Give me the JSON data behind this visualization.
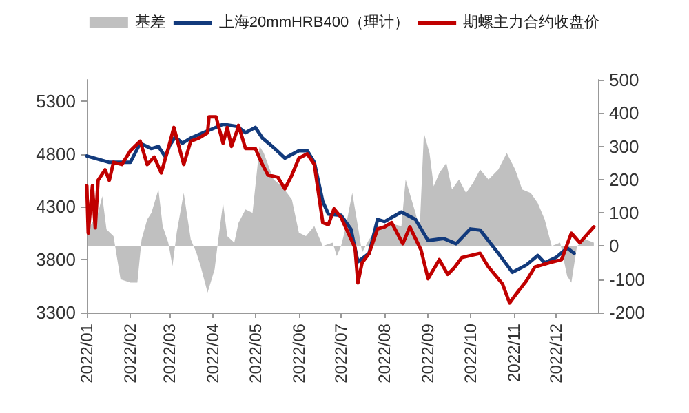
{
  "chart_data": {
    "type": "line",
    "legend": "top",
    "xlim": [
      "2022-01-01",
      "2022-12-31"
    ],
    "xticks": [
      {
        "value": "2022-01-01",
        "label": "2022/01"
      },
      {
        "value": "2022-02-01",
        "label": "2022/02"
      },
      {
        "value": "2022-03-01",
        "label": "2022/03"
      },
      {
        "value": "2022-04-01",
        "label": "2022/04"
      },
      {
        "value": "2022-05-01",
        "label": "2022/05"
      },
      {
        "value": "2022-06-01",
        "label": "2022/06"
      },
      {
        "value": "2022-07-01",
        "label": "2022/07"
      },
      {
        "value": "2022-08-01",
        "label": "2022/08"
      },
      {
        "value": "2022-09-01",
        "label": "2022/09"
      },
      {
        "value": "2022-10-01",
        "label": "2022/10"
      },
      {
        "value": "2022-11-01",
        "label": "2022/11"
      },
      {
        "value": "2022-12-01",
        "label": "2022/12"
      }
    ],
    "ylim": [
      3300,
      5500
    ],
    "yticks": [
      3300,
      3800,
      4300,
      4800,
      5300
    ],
    "y2lim": [
      -200,
      500
    ],
    "y2ticks": [
      -200,
      -100,
      0,
      100,
      200,
      300,
      400,
      500
    ],
    "series": [
      {
        "name": "基差",
        "type": "area",
        "axis": "y2",
        "color": "#c0c0c0",
        "x": [
          "2022-01-02",
          "2022-01-09",
          "2022-01-12",
          "2022-01-15",
          "2022-01-20",
          "2022-01-25",
          "2022-02-01",
          "2022-02-06",
          "2022-02-09",
          "2022-02-13",
          "2022-02-16",
          "2022-02-21",
          "2022-02-24",
          "2022-02-28",
          "2022-03-03",
          "2022-03-06",
          "2022-03-11",
          "2022-03-16",
          "2022-03-20",
          "2022-03-23",
          "2022-03-28",
          "2022-04-02",
          "2022-04-04",
          "2022-04-08",
          "2022-04-11",
          "2022-04-16",
          "2022-04-19",
          "2022-04-24",
          "2022-04-29",
          "2022-05-04",
          "2022-05-07",
          "2022-05-14",
          "2022-05-20",
          "2022-05-27",
          "2022-06-01",
          "2022-06-06",
          "2022-06-12",
          "2022-06-18",
          "2022-06-25",
          "2022-06-28",
          "2022-07-01",
          "2022-07-04",
          "2022-07-09",
          "2022-07-13",
          "2022-07-16",
          "2022-07-21",
          "2022-07-27",
          "2022-08-03",
          "2022-08-13",
          "2022-08-16",
          "2022-08-23",
          "2022-08-26",
          "2022-08-29",
          "2022-09-02",
          "2022-09-05",
          "2022-09-09",
          "2022-09-14",
          "2022-09-18",
          "2022-09-23",
          "2022-09-28",
          "2022-10-03",
          "2022-10-08",
          "2022-10-14",
          "2022-10-21",
          "2022-10-27",
          "2022-11-02",
          "2022-11-07",
          "2022-11-13",
          "2022-11-18",
          "2022-11-23",
          "2022-11-28",
          "2022-12-04",
          "2022-12-09",
          "2022-12-12",
          "2022-12-16",
          "2022-12-22",
          "2022-12-28"
        ],
        "values": [
          50,
          100,
          150,
          50,
          30,
          -100,
          -110,
          -110,
          20,
          80,
          100,
          170,
          60,
          10,
          -60,
          40,
          160,
          20,
          -20,
          -60,
          -140,
          -70,
          0,
          130,
          30,
          10,
          70,
          110,
          100,
          300,
          280,
          200,
          180,
          140,
          40,
          30,
          60,
          0,
          10,
          -30,
          0,
          50,
          160,
          60,
          -20,
          20,
          50,
          70,
          60,
          200,
          100,
          50,
          340,
          280,
          180,
          220,
          250,
          170,
          200,
          160,
          190,
          230,
          200,
          230,
          280,
          230,
          170,
          160,
          130,
          80,
          0,
          10,
          -90,
          -110,
          0,
          20,
          10
        ]
      },
      {
        "name": "上海20mmHRB400（理计）",
        "color": "#123a7c",
        "x": [
          "2022-01-01",
          "2022-01-17",
          "2022-02-01",
          "2022-02-08",
          "2022-02-16",
          "2022-02-21",
          "2022-02-26",
          "2022-03-01",
          "2022-03-05",
          "2022-03-10",
          "2022-03-16",
          "2022-03-25",
          "2022-04-01",
          "2022-04-08",
          "2022-04-18",
          "2022-04-24",
          "2022-05-01",
          "2022-05-06",
          "2022-05-14",
          "2022-05-22",
          "2022-06-01",
          "2022-06-07",
          "2022-06-12",
          "2022-06-18",
          "2022-06-22",
          "2022-07-01",
          "2022-07-08",
          "2022-07-13",
          "2022-07-21",
          "2022-07-27",
          "2022-08-01",
          "2022-08-13",
          "2022-08-23",
          "2022-09-01",
          "2022-09-12",
          "2022-09-21",
          "2022-10-01",
          "2022-10-08",
          "2022-10-21",
          "2022-10-31",
          "2022-11-10",
          "2022-11-18",
          "2022-11-23",
          "2022-12-01",
          "2022-12-09",
          "2022-12-14"
        ],
        "values": [
          4780,
          4720,
          4720,
          4900,
          4850,
          4870,
          4770,
          4880,
          4960,
          4900,
          4950,
          5000,
          5040,
          5080,
          5060,
          5000,
          5050,
          4950,
          4860,
          4760,
          4830,
          4830,
          4720,
          4350,
          4230,
          4220,
          4090,
          3780,
          3860,
          4180,
          4160,
          4250,
          4180,
          3980,
          4000,
          3950,
          4090,
          4080,
          3860,
          3680,
          3750,
          3840,
          3770,
          3820,
          3910,
          3860
        ]
      },
      {
        "name": "期螺主力合约收盘价",
        "color": "#c00000",
        "x": [
          "2022-01-01",
          "2022-01-02",
          "2022-01-05",
          "2022-01-07",
          "2022-01-09",
          "2022-01-14",
          "2022-01-17",
          "2022-01-20",
          "2022-01-26",
          "2022-02-01",
          "2022-02-08",
          "2022-02-13",
          "2022-02-18",
          "2022-02-23",
          "2022-03-01",
          "2022-03-04",
          "2022-03-08",
          "2022-03-11",
          "2022-03-16",
          "2022-03-22",
          "2022-03-28",
          "2022-03-29",
          "2022-04-03",
          "2022-04-08",
          "2022-04-11",
          "2022-04-14",
          "2022-04-18",
          "2022-04-19",
          "2022-04-24",
          "2022-05-01",
          "2022-05-06",
          "2022-05-10",
          "2022-05-17",
          "2022-05-22",
          "2022-05-27",
          "2022-06-01",
          "2022-06-07",
          "2022-06-12",
          "2022-06-18",
          "2022-06-22",
          "2022-06-26",
          "2022-07-01",
          "2022-07-11",
          "2022-07-13",
          "2022-07-16",
          "2022-07-21",
          "2022-07-27",
          "2022-08-01",
          "2022-08-06",
          "2022-08-14",
          "2022-08-19",
          "2022-08-27",
          "2022-09-01",
          "2022-09-09",
          "2022-09-15",
          "2022-09-20",
          "2022-09-25",
          "2022-10-08",
          "2022-10-14",
          "2022-10-24",
          "2022-10-29",
          "2022-11-03",
          "2022-11-10",
          "2022-11-16",
          "2022-11-26",
          "2022-12-05",
          "2022-12-12",
          "2022-12-18",
          "2022-12-28"
        ],
        "values": [
          4500,
          4050,
          4500,
          4100,
          4550,
          4650,
          4550,
          4720,
          4700,
          4830,
          4920,
          4700,
          4770,
          4620,
          4900,
          5050,
          4850,
          4700,
          4920,
          4950,
          5000,
          5150,
          5150,
          4900,
          5050,
          4870,
          5020,
          5070,
          4850,
          4850,
          4700,
          4600,
          4580,
          4470,
          4600,
          4760,
          4800,
          4700,
          4150,
          4130,
          4280,
          4200,
          3910,
          3580,
          3770,
          3860,
          4090,
          4110,
          4150,
          3950,
          4110,
          3890,
          3620,
          3800,
          3660,
          3730,
          3820,
          3860,
          3730,
          3570,
          3390,
          3480,
          3600,
          3730,
          3770,
          3800,
          4050,
          3960,
          4110
        ]
      }
    ]
  }
}
